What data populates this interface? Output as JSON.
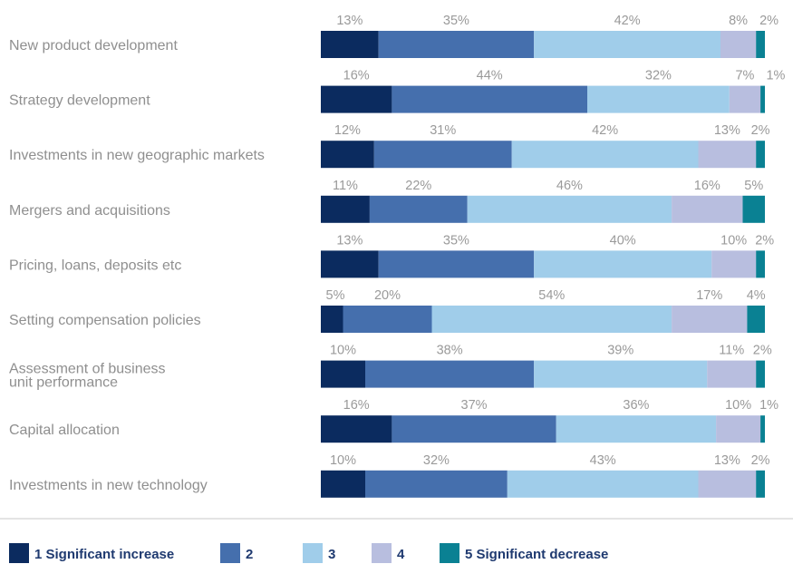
{
  "chart_data": {
    "type": "bar",
    "orientation": "horizontal",
    "stacked": true,
    "percent_scale": true,
    "categories": [
      [
        "New product development"
      ],
      [
        "Strategy development"
      ],
      [
        "Investments in new geographic markets"
      ],
      [
        "Mergers and acquisitions"
      ],
      [
        "Pricing, loans, deposits etc"
      ],
      [
        "Setting compensation policies"
      ],
      [
        "Assessment of business",
        "unit performance"
      ],
      [
        "Capital allocation"
      ],
      [
        "Investments in new technology"
      ]
    ],
    "series": [
      {
        "name": "1 Significant increase",
        "color": "#0b2b5f",
        "values": [
          13,
          16,
          12,
          11,
          13,
          5,
          10,
          16,
          10
        ]
      },
      {
        "name": "2",
        "color": "#456fad",
        "values": [
          35,
          44,
          31,
          22,
          35,
          20,
          38,
          37,
          32
        ]
      },
      {
        "name": "3",
        "color": "#a0cdea",
        "values": [
          42,
          32,
          42,
          46,
          40,
          54,
          39,
          36,
          43
        ]
      },
      {
        "name": "4",
        "color": "#b8bedf",
        "values": [
          8,
          7,
          13,
          16,
          10,
          17,
          11,
          10,
          13
        ]
      },
      {
        "name": "5 Significant decrease",
        "color": "#0a8193",
        "values": [
          2,
          1,
          2,
          5,
          2,
          4,
          2,
          1,
          2
        ]
      }
    ],
    "value_suffix": "%",
    "legend_position": "bottom",
    "grid": false
  }
}
